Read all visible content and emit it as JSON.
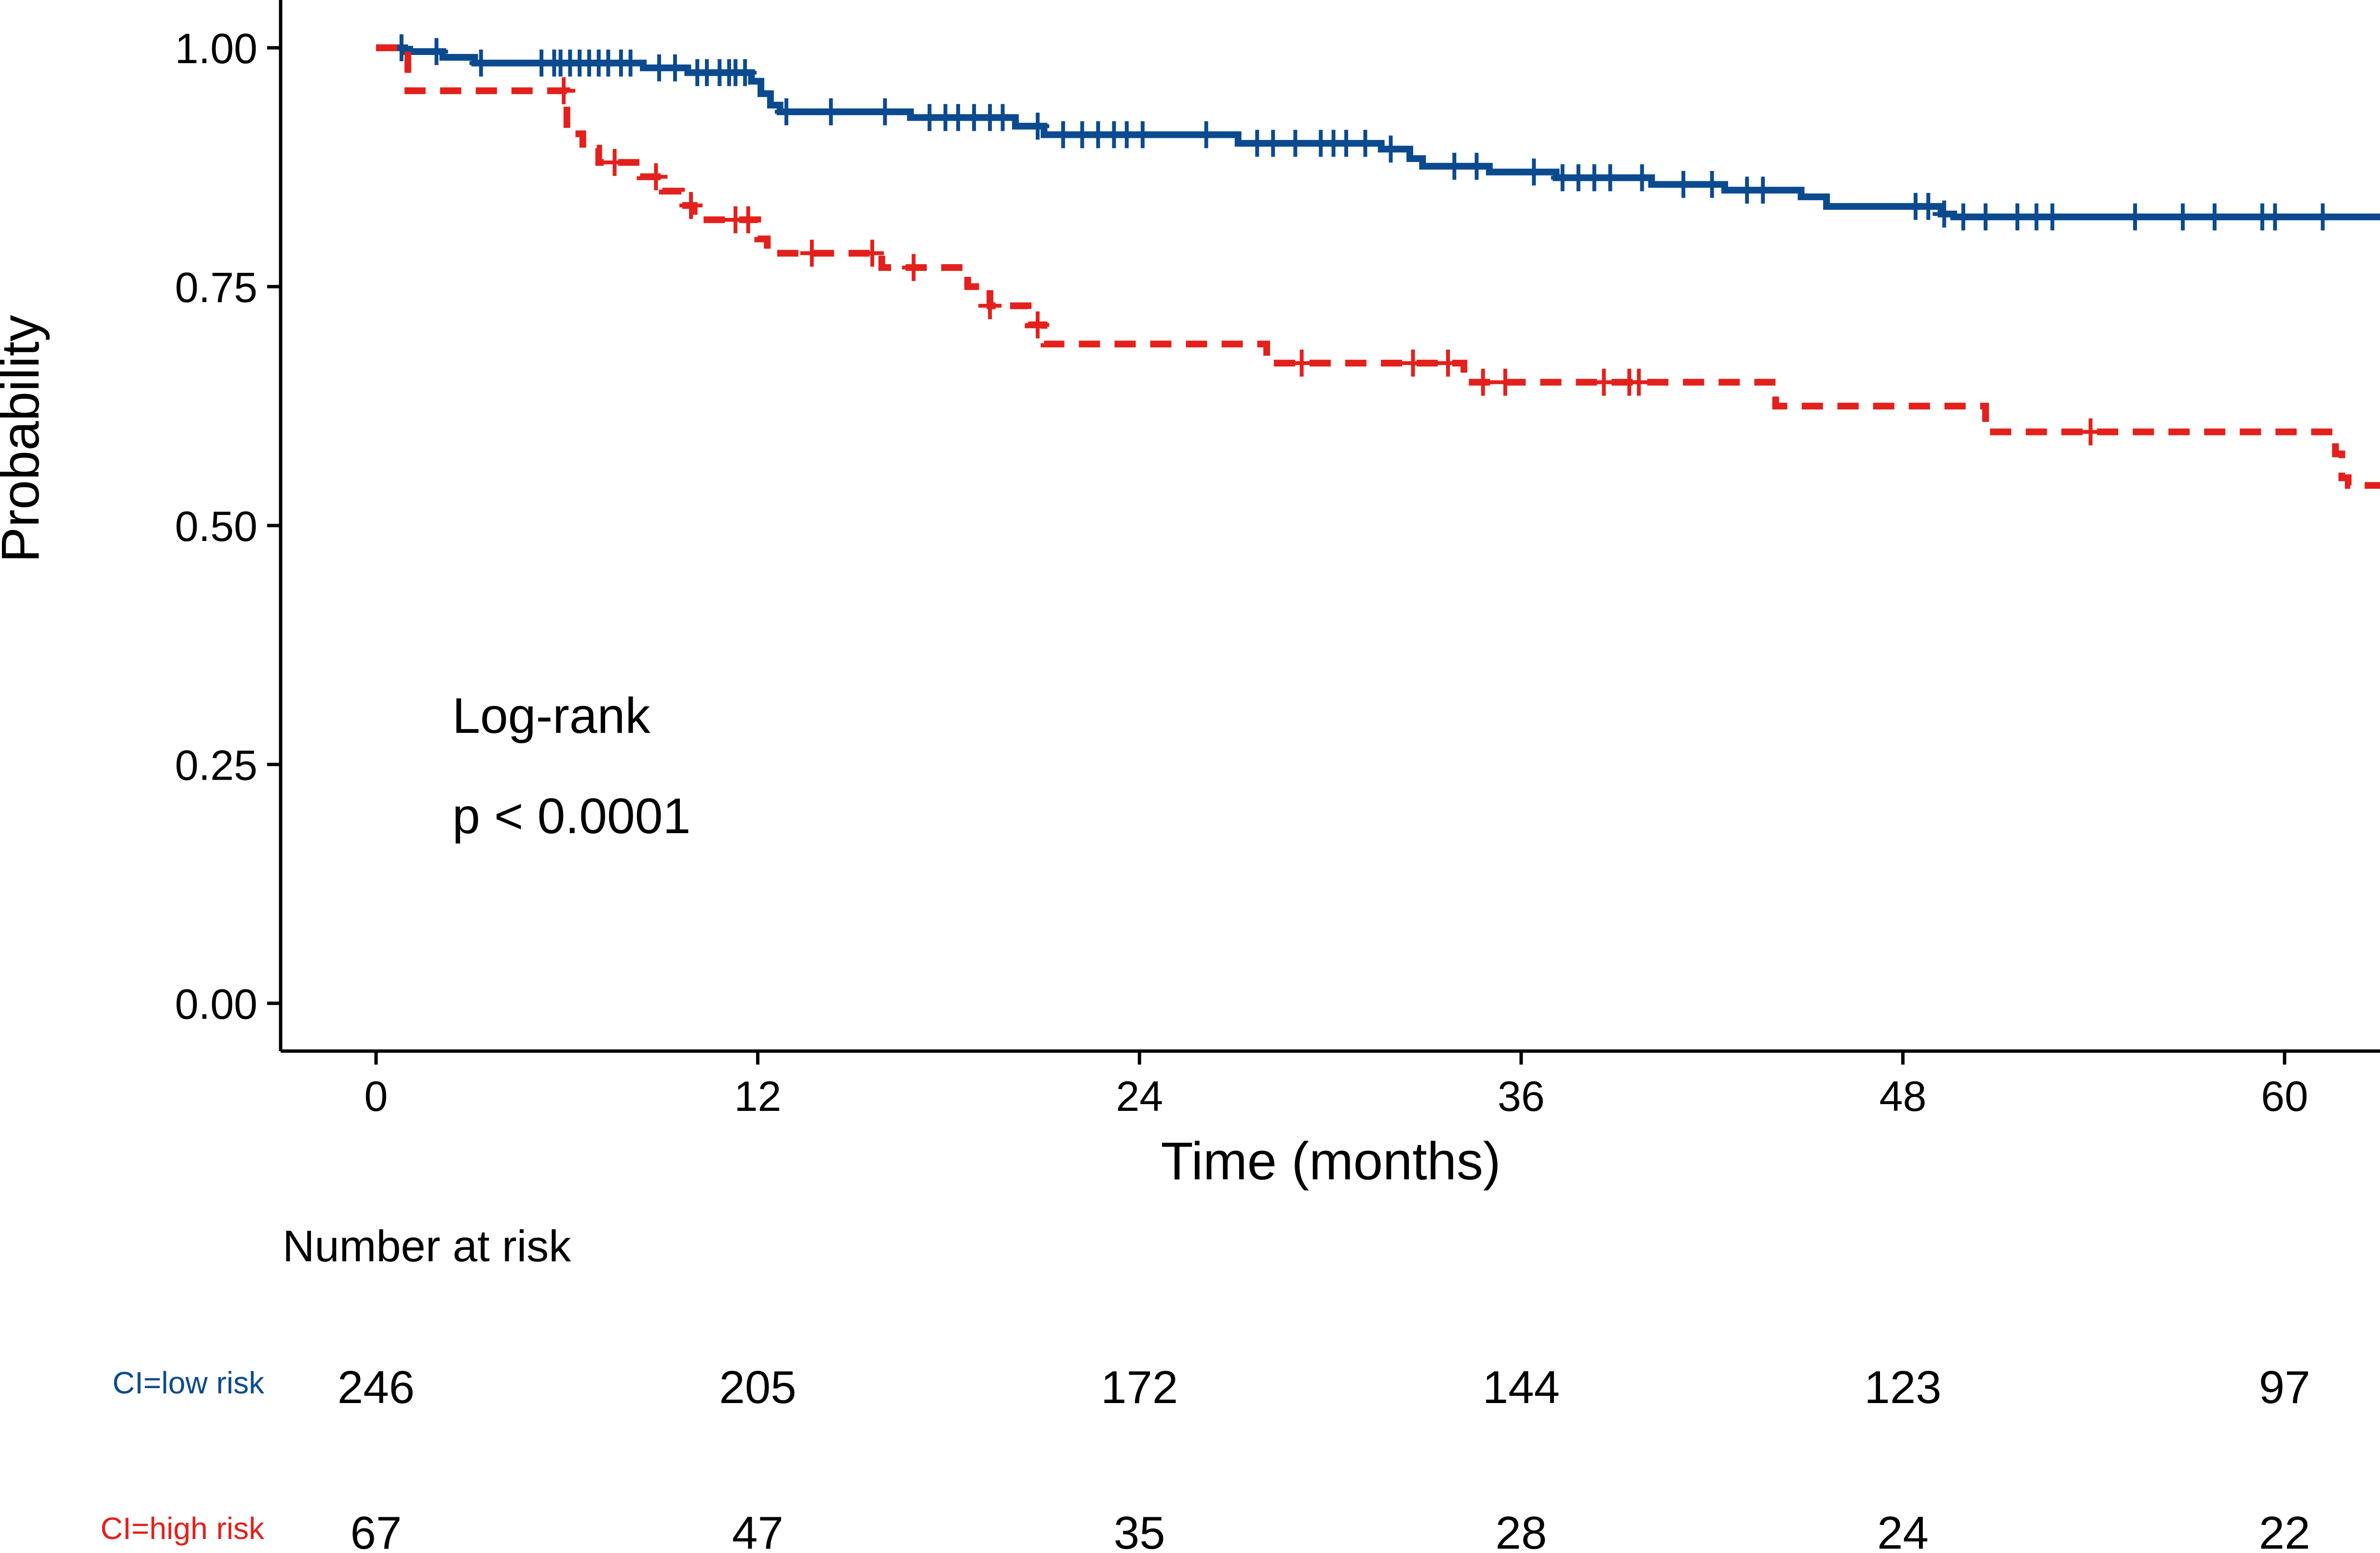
{
  "chart_data": {
    "type": "line",
    "subtype": "kaplan-meier",
    "title": "",
    "xlabel": "Time (months)",
    "ylabel": "Probability",
    "xlim": [
      -3,
      63
    ],
    "ylim": [
      -0.05,
      1.05
    ],
    "x_ticks": [
      0,
      12,
      24,
      36,
      48,
      60
    ],
    "x_tick_labels": [
      "0",
      "12",
      "24",
      "36",
      "48",
      "60"
    ],
    "y_ticks": [
      0,
      0.25,
      0.5,
      0.75,
      1
    ],
    "y_tick_labels": [
      "0.00",
      "0.25",
      "0.50",
      "0.75",
      "1.00"
    ],
    "grid": false,
    "annotations": {
      "test_name": "Log-rank",
      "p_value": "p < 0.0001"
    },
    "series": [
      {
        "name": "CI=low risk",
        "color": "#0b4a8f",
        "dash": "solid",
        "steps": [
          [
            0,
            1.0
          ],
          [
            0.9,
            0.996
          ],
          [
            2.1,
            0.99
          ],
          [
            3.1,
            0.984
          ],
          [
            8.4,
            0.979
          ],
          [
            9.8,
            0.974
          ],
          [
            11.8,
            0.965
          ],
          [
            12.1,
            0.952
          ],
          [
            12.4,
            0.94
          ],
          [
            12.7,
            0.933
          ],
          [
            16.8,
            0.927
          ],
          [
            20.1,
            0.918
          ],
          [
            21.0,
            0.909
          ],
          [
            27.1,
            0.9
          ],
          [
            31.6,
            0.894
          ],
          [
            32.5,
            0.884
          ],
          [
            32.9,
            0.876
          ],
          [
            35.0,
            0.87
          ],
          [
            37.1,
            0.864
          ],
          [
            40.1,
            0.857
          ],
          [
            42.4,
            0.851
          ],
          [
            44.8,
            0.844
          ],
          [
            45.6,
            0.834
          ],
          [
            49.2,
            0.826
          ],
          [
            49.6,
            0.823
          ],
          [
            63.0,
            0.823
          ]
        ],
        "censor_times": [
          0.8,
          1.9,
          3.3,
          5.2,
          5.6,
          5.8,
          6.1,
          6.4,
          6.7,
          7.0,
          7.3,
          7.7,
          8.0,
          8.9,
          9.4,
          10.1,
          10.4,
          10.8,
          11.1,
          11.3,
          11.6,
          12.9,
          14.3,
          16.0,
          17.4,
          17.9,
          18.3,
          18.8,
          19.3,
          19.7,
          20.8,
          21.6,
          22.2,
          22.7,
          23.2,
          23.6,
          24.1,
          26.1,
          27.7,
          28.2,
          28.9,
          29.7,
          30.1,
          30.5,
          31.1,
          31.9,
          33.9,
          34.6,
          36.4,
          37.3,
          37.8,
          38.3,
          38.8,
          39.8,
          41.1,
          42.0,
          43.1,
          43.6,
          48.4,
          48.8,
          49.3,
          49.9,
          50.6,
          51.6,
          52.2,
          52.7,
          55.3,
          56.8,
          57.8,
          59.3,
          59.7,
          61.2
        ]
      },
      {
        "name": "CI=high risk",
        "color": "#e3201b",
        "dash": "dashed",
        "steps": [
          [
            0,
            1.0
          ],
          [
            1.0,
            0.955
          ],
          [
            6.0,
            0.91
          ],
          [
            6.5,
            0.895
          ],
          [
            7.0,
            0.88
          ],
          [
            8.3,
            0.865
          ],
          [
            9.0,
            0.85
          ],
          [
            9.6,
            0.835
          ],
          [
            10.0,
            0.82
          ],
          [
            12.0,
            0.8
          ],
          [
            12.3,
            0.785
          ],
          [
            15.9,
            0.77
          ],
          [
            18.6,
            0.75
          ],
          [
            19.3,
            0.73
          ],
          [
            20.5,
            0.71
          ],
          [
            21.0,
            0.69
          ],
          [
            28.0,
            0.67
          ],
          [
            34.2,
            0.65
          ],
          [
            44.0,
            0.625
          ],
          [
            50.6,
            0.598
          ],
          [
            61.6,
            0.575
          ],
          [
            61.8,
            0.55
          ],
          [
            62.0,
            0.542
          ],
          [
            63.0,
            0.542
          ]
        ],
        "censor_times": [
          5.9,
          7.5,
          8.8,
          9.9,
          11.3,
          11.7,
          13.7,
          15.6,
          16.9,
          19.3,
          20.8,
          29.1,
          32.6,
          33.7,
          34.8,
          35.5,
          38.6,
          39.4,
          39.7,
          53.9
        ]
      }
    ],
    "risk_table": {
      "title": "Number at risk",
      "times": [
        0,
        12,
        24,
        36,
        48,
        60
      ],
      "rows": [
        {
          "label": "CI=low risk",
          "color": "#0b4a8f",
          "values": [
            246,
            205,
            172,
            144,
            123,
            97
          ]
        },
        {
          "label": "CI=high risk",
          "color": "#e3201b",
          "values": [
            67,
            47,
            35,
            28,
            24,
            22
          ]
        }
      ]
    }
  }
}
